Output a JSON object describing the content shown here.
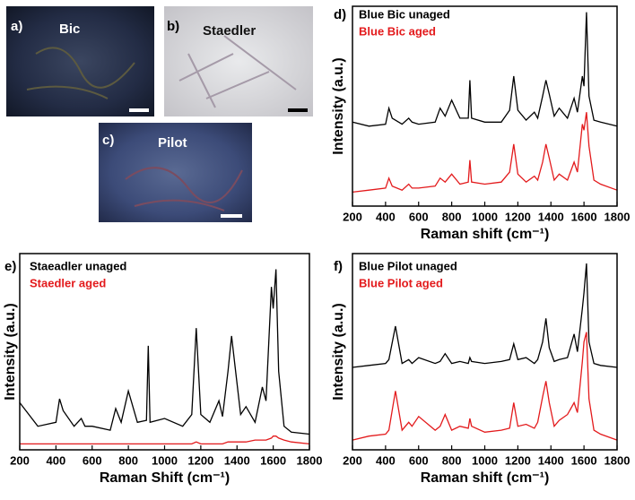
{
  "images": [
    {
      "label": "a)",
      "name": "Bic"
    },
    {
      "label": "b)",
      "name": "Staedler"
    },
    {
      "label": "c)",
      "name": "Pilot"
    }
  ],
  "chart_data": [
    {
      "type": "line",
      "label": "d)",
      "xlabel": "Raman shift (cm⁻¹)",
      "ylabel": "Intensity (a.u.)",
      "x": [
        200,
        300,
        400,
        420,
        440,
        500,
        540,
        560,
        600,
        700,
        730,
        760,
        800,
        850,
        900,
        910,
        920,
        1000,
        1100,
        1150,
        1175,
        1200,
        1250,
        1300,
        1320,
        1350,
        1370,
        1390,
        1420,
        1450,
        1500,
        1540,
        1560,
        1590,
        1600,
        1615,
        1630,
        1660,
        1700,
        1800
      ],
      "xlim": [
        200,
        1800
      ],
      "xticks": [
        200,
        400,
        600,
        800,
        1000,
        1200,
        1400,
        1600,
        1800
      ],
      "ylim": [
        0,
        100
      ],
      "series": [
        {
          "name": "Blue Bic unaged",
          "color": "#000000",
          "values": [
            42,
            40,
            41,
            49,
            44,
            41,
            44,
            42,
            41,
            42,
            49,
            45,
            53,
            44,
            44,
            63,
            44,
            42,
            42,
            48,
            65,
            48,
            43,
            47,
            44,
            55,
            63,
            56,
            45,
            49,
            44,
            54,
            47,
            65,
            60,
            97,
            55,
            43,
            42,
            40
          ]
        },
        {
          "name": "Blue Bic aged",
          "color": "#e31a1c",
          "values": [
            7,
            8,
            9,
            14,
            10,
            8,
            11,
            9,
            9,
            10,
            14,
            12,
            16,
            11,
            12,
            23,
            12,
            11,
            12,
            17,
            31,
            16,
            12,
            15,
            13,
            22,
            31,
            24,
            13,
            16,
            13,
            22,
            17,
            41,
            38,
            47,
            30,
            13,
            11,
            8
          ]
        }
      ]
    },
    {
      "type": "line",
      "label": "e)",
      "xlabel": "Raman Shift (cm⁻¹)",
      "ylabel": "Intensity (a.u.)",
      "x": [
        200,
        300,
        400,
        420,
        440,
        500,
        540,
        560,
        600,
        700,
        730,
        760,
        800,
        850,
        900,
        910,
        920,
        1000,
        1100,
        1150,
        1175,
        1200,
        1250,
        1300,
        1320,
        1350,
        1370,
        1390,
        1420,
        1450,
        1500,
        1540,
        1560,
        1590,
        1600,
        1615,
        1630,
        1660,
        1700,
        1800
      ],
      "xlim": [
        200,
        1800
      ],
      "xticks": [
        200,
        400,
        600,
        800,
        1000,
        1200,
        1400,
        1600,
        1800
      ],
      "ylim": [
        0,
        100
      ],
      "series": [
        {
          "name": "Staeadler unaged",
          "color": "#000000",
          "values": [
            24,
            12,
            14,
            26,
            20,
            12,
            16,
            12,
            12,
            10,
            21,
            14,
            30,
            14,
            15,
            53,
            14,
            16,
            12,
            18,
            62,
            18,
            14,
            25,
            17,
            40,
            58,
            42,
            18,
            22,
            14,
            32,
            25,
            83,
            72,
            92,
            40,
            12,
            9,
            8
          ]
        },
        {
          "name": "Staedler aged",
          "color": "#e31a1c",
          "values": [
            3,
            3,
            3,
            3,
            3,
            3,
            3,
            3,
            3,
            3,
            3,
            3,
            3,
            3,
            3,
            3,
            3,
            3,
            3,
            3,
            4,
            3,
            3,
            3,
            3,
            4,
            4,
            4,
            4,
            4,
            5,
            5,
            5,
            6,
            7,
            7,
            6,
            5,
            4,
            3
          ]
        }
      ]
    },
    {
      "type": "line",
      "label": "f)",
      "xlabel": "Raman shift (cm⁻¹)",
      "ylabel": "Intensity (a.u.)",
      "x": [
        200,
        300,
        400,
        420,
        460,
        500,
        540,
        560,
        600,
        700,
        730,
        760,
        800,
        850,
        900,
        910,
        920,
        1000,
        1100,
        1150,
        1175,
        1200,
        1250,
        1300,
        1320,
        1350,
        1370,
        1390,
        1420,
        1450,
        1500,
        1540,
        1560,
        1590,
        1600,
        1615,
        1630,
        1660,
        1700,
        1800
      ],
      "xlim": [
        200,
        1800
      ],
      "xticks": [
        200,
        400,
        600,
        800,
        1000,
        1200,
        1400,
        1600,
        1800
      ],
      "ylim": [
        0,
        100
      ],
      "series": [
        {
          "name": "Blue Pilot unaged",
          "color": "#000000",
          "values": [
            42,
            43,
            44,
            46,
            63,
            44,
            46,
            44,
            47,
            44,
            45,
            49,
            44,
            45,
            44,
            47,
            45,
            44,
            45,
            46,
            54,
            46,
            47,
            44,
            46,
            55,
            67,
            52,
            45,
            46,
            47,
            59,
            50,
            72,
            80,
            95,
            55,
            44,
            43,
            42
          ]
        },
        {
          "name": "Blue Pilot aged",
          "color": "#e31a1c",
          "values": [
            5,
            7,
            8,
            10,
            30,
            10,
            14,
            12,
            17,
            10,
            12,
            18,
            10,
            12,
            11,
            16,
            12,
            9,
            10,
            11,
            24,
            12,
            13,
            11,
            14,
            27,
            35,
            24,
            12,
            15,
            18,
            24,
            19,
            45,
            55,
            60,
            26,
            10,
            8,
            5
          ]
        }
      ]
    }
  ]
}
